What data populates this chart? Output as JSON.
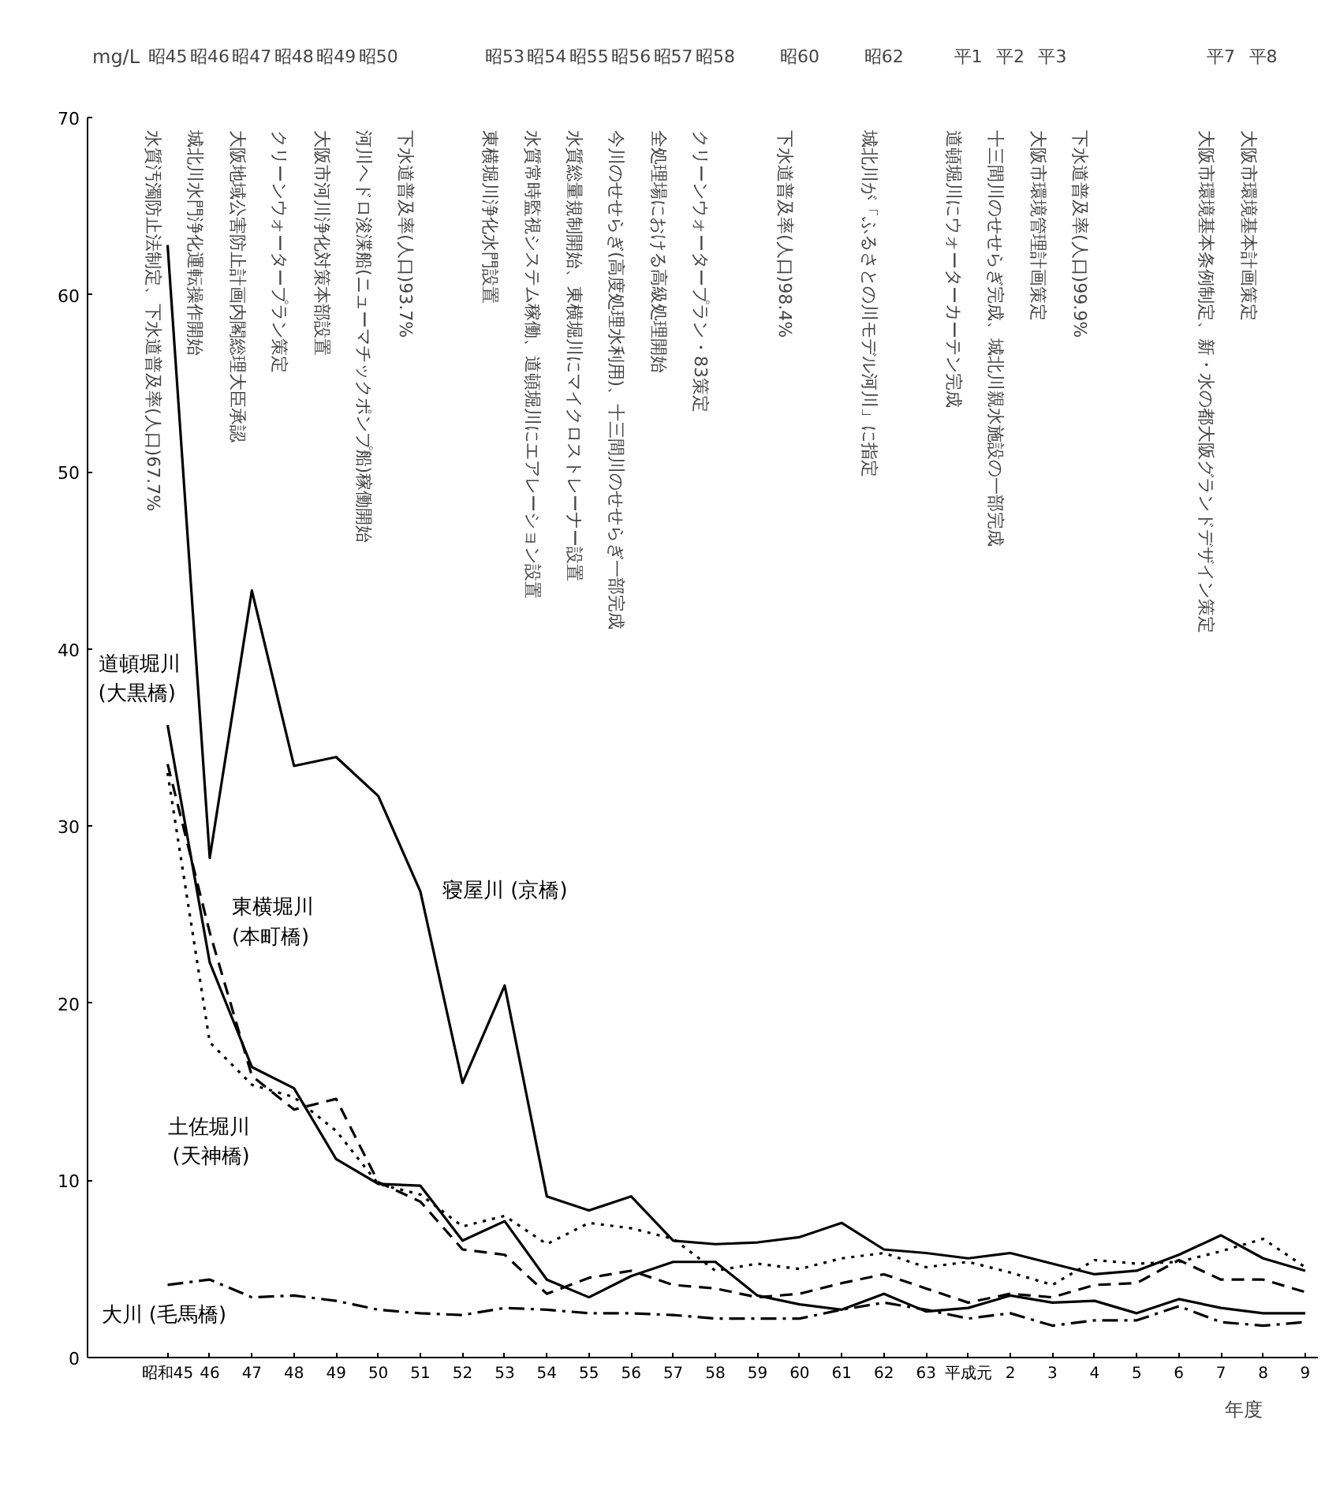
{
  "chart_data": {
    "type": "line",
    "ylabel": "mg/L",
    "xlabel": "年度",
    "categories": [
      "昭和45",
      "46",
      "47",
      "48",
      "49",
      "50",
      "51",
      "52",
      "53",
      "54",
      "55",
      "56",
      "57",
      "58",
      "59",
      "60",
      "61",
      "62",
      "63",
      "平成元",
      "2",
      "3",
      "4",
      "5",
      "6",
      "7",
      "8",
      "9"
    ],
    "ylim": [
      0,
      70
    ],
    "yticks": [
      0,
      10,
      20,
      30,
      40,
      50,
      60,
      70
    ],
    "grid": false,
    "legend": false,
    "marker": "none",
    "series": [
      {
        "name": "寝屋川 (京橋)",
        "color": "#000000",
        "line_style": "solid",
        "values": [
          62.8,
          28.2,
          43.3,
          33.4,
          33.9,
          31.7,
          26.3,
          15.5,
          21.0,
          9.1,
          8.3,
          9.1,
          6.6,
          6.4,
          6.5,
          6.8,
          7.6,
          6.1,
          5.9,
          5.6,
          5.9,
          5.3,
          4.7,
          4.9,
          5.8,
          6.9,
          5.6,
          4.9
        ]
      },
      {
        "name": "道頓堀川\n(大黒橋)",
        "color": "#000000",
        "line_style": "solid",
        "values": [
          35.7,
          22.3,
          16.4,
          15.2,
          11.2,
          9.8,
          9.7,
          6.6,
          7.7,
          4.4,
          3.4,
          4.6,
          5.4,
          5.4,
          3.5,
          3.0,
          2.7,
          3.6,
          2.6,
          2.8,
          3.5,
          3.1,
          3.2,
          2.5,
          3.3,
          2.8,
          2.5,
          2.5
        ]
      },
      {
        "name": "東横堀川\n(本町橋)",
        "color": "#000000",
        "line_style": "dashed",
        "values": [
          33.5,
          24.0,
          15.9,
          14.0,
          14.6,
          9.9,
          8.8,
          6.1,
          5.8,
          3.6,
          4.5,
          4.9,
          4.1,
          3.9,
          3.4,
          3.6,
          4.2,
          4.7,
          3.9,
          3.1,
          3.6,
          3.4,
          4.1,
          4.2,
          5.5,
          4.4,
          4.4,
          3.7
        ]
      },
      {
        "name": "土佐堀川\n(天神橋)",
        "color": "#000000",
        "line_style": "dotted",
        "values": [
          33.0,
          17.8,
          15.4,
          14.7,
          12.8,
          9.8,
          9.2,
          7.4,
          8.0,
          6.4,
          7.6,
          7.3,
          6.7,
          4.9,
          5.3,
          5.0,
          5.6,
          5.9,
          5.1,
          5.4,
          4.8,
          4.1,
          5.5,
          5.3,
          5.4,
          6.0,
          6.7,
          5.1
        ]
      },
      {
        "name": "大川 (毛馬橋)",
        "color": "#000000",
        "line_style": "dashdot",
        "values": [
          4.1,
          4.4,
          3.4,
          3.5,
          3.2,
          2.7,
          2.5,
          2.4,
          2.8,
          2.7,
          2.5,
          2.5,
          2.4,
          2.2,
          2.2,
          2.2,
          2.7,
          3.1,
          2.7,
          2.2,
          2.5,
          1.8,
          2.1,
          2.1,
          2.9,
          2.0,
          1.8,
          2.0
        ]
      }
    ],
    "annotations": [
      "昭45",
      "水質汚濁防止法制定、下水道普及率(人口)67.7%",
      "昭46",
      "城北川水門浄化運転操作開始",
      "昭47",
      "大阪地域公害防止計画内閣総理大臣承認",
      "昭48",
      "クリーンウォータープラン策定",
      "昭49",
      "大阪市河川浄化対策本部設置",
      "昭50",
      "河川ヘドロ浚渫船(ニューマチックポンプ船)稼働開始",
      "下水道普及率(人口)93.7%",
      "昭53",
      "東横堀川浄化水門設置",
      "昭54",
      "水質常時監視システム稼働、道頓堀川にエアレーション設置",
      "昭55",
      "水質総量規制開始、東横堀川にマイクロストレーナー設置",
      "昭56",
      "今川のせせらぎ(高度処理水利用)、十三間川のせせらぎ一部完成",
      "昭57",
      "全処理場における高級処理開始",
      "昭58",
      "クリーンウォータープラン・83策定",
      "昭60",
      "下水道普及率(人口)98.4%",
      "昭62",
      "城北川が「ふるさとの川モデル河川」に指定",
      "平1",
      "道頓堀川にウォーターカーテン完成",
      "平2",
      "十三間川のせせらぎ完成、城北川親水施設の一部完成",
      "平3",
      "大阪市環境管理計画策定",
      "下水道普及率(人口)99.9%",
      "平7",
      "大阪市環境基本条例制定、新・水の都大阪グランドデザイン策定",
      "平8",
      "大阪市環境基本計画策定"
    ]
  }
}
